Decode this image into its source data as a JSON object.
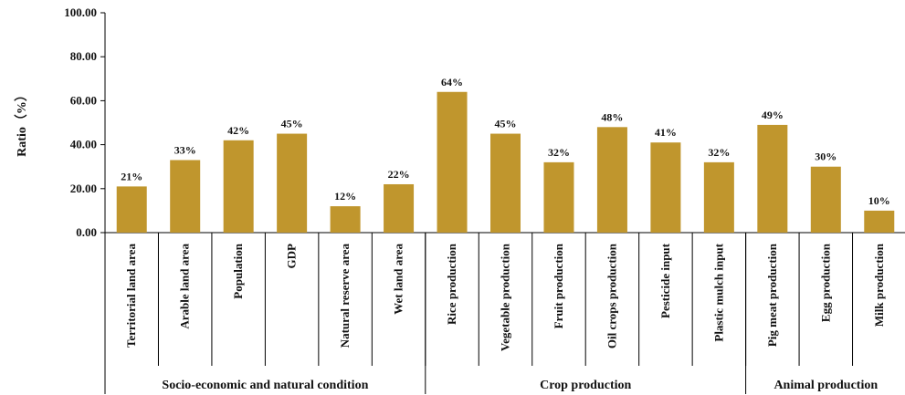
{
  "chart_data": {
    "type": "bar",
    "ylabel": "Ratio（%）",
    "ylim": [
      0,
      100
    ],
    "yticks": [
      "0.00",
      "20.00",
      "40.00",
      "60.00",
      "80.00",
      "100.00"
    ],
    "grid": false,
    "bar_color": "#C0962D",
    "categories": [
      "Territorial land area",
      "Arable land area",
      "Population",
      "GDP",
      "Natural reserve area",
      "Wet land area",
      "Rice production",
      "Vegetable production",
      "Fruit production",
      "Oil crops production",
      "Pesticide input",
      "Plastic mulch input",
      "Pig meat production",
      "Egg production",
      "Milk production"
    ],
    "values": [
      21,
      33,
      42,
      45,
      12,
      22,
      64,
      45,
      32,
      48,
      41,
      32,
      49,
      30,
      10
    ],
    "data_labels": [
      "21%",
      "33%",
      "42%",
      "45%",
      "12%",
      "22%",
      "64%",
      "45%",
      "32%",
      "48%",
      "41%",
      "32%",
      "49%",
      "30%",
      "10%"
    ],
    "groups": [
      {
        "name": "Socio-economic and natural condition",
        "count": 6
      },
      {
        "name": "Crop production",
        "count": 6
      },
      {
        "name": "Animal production",
        "count": 3
      }
    ]
  }
}
